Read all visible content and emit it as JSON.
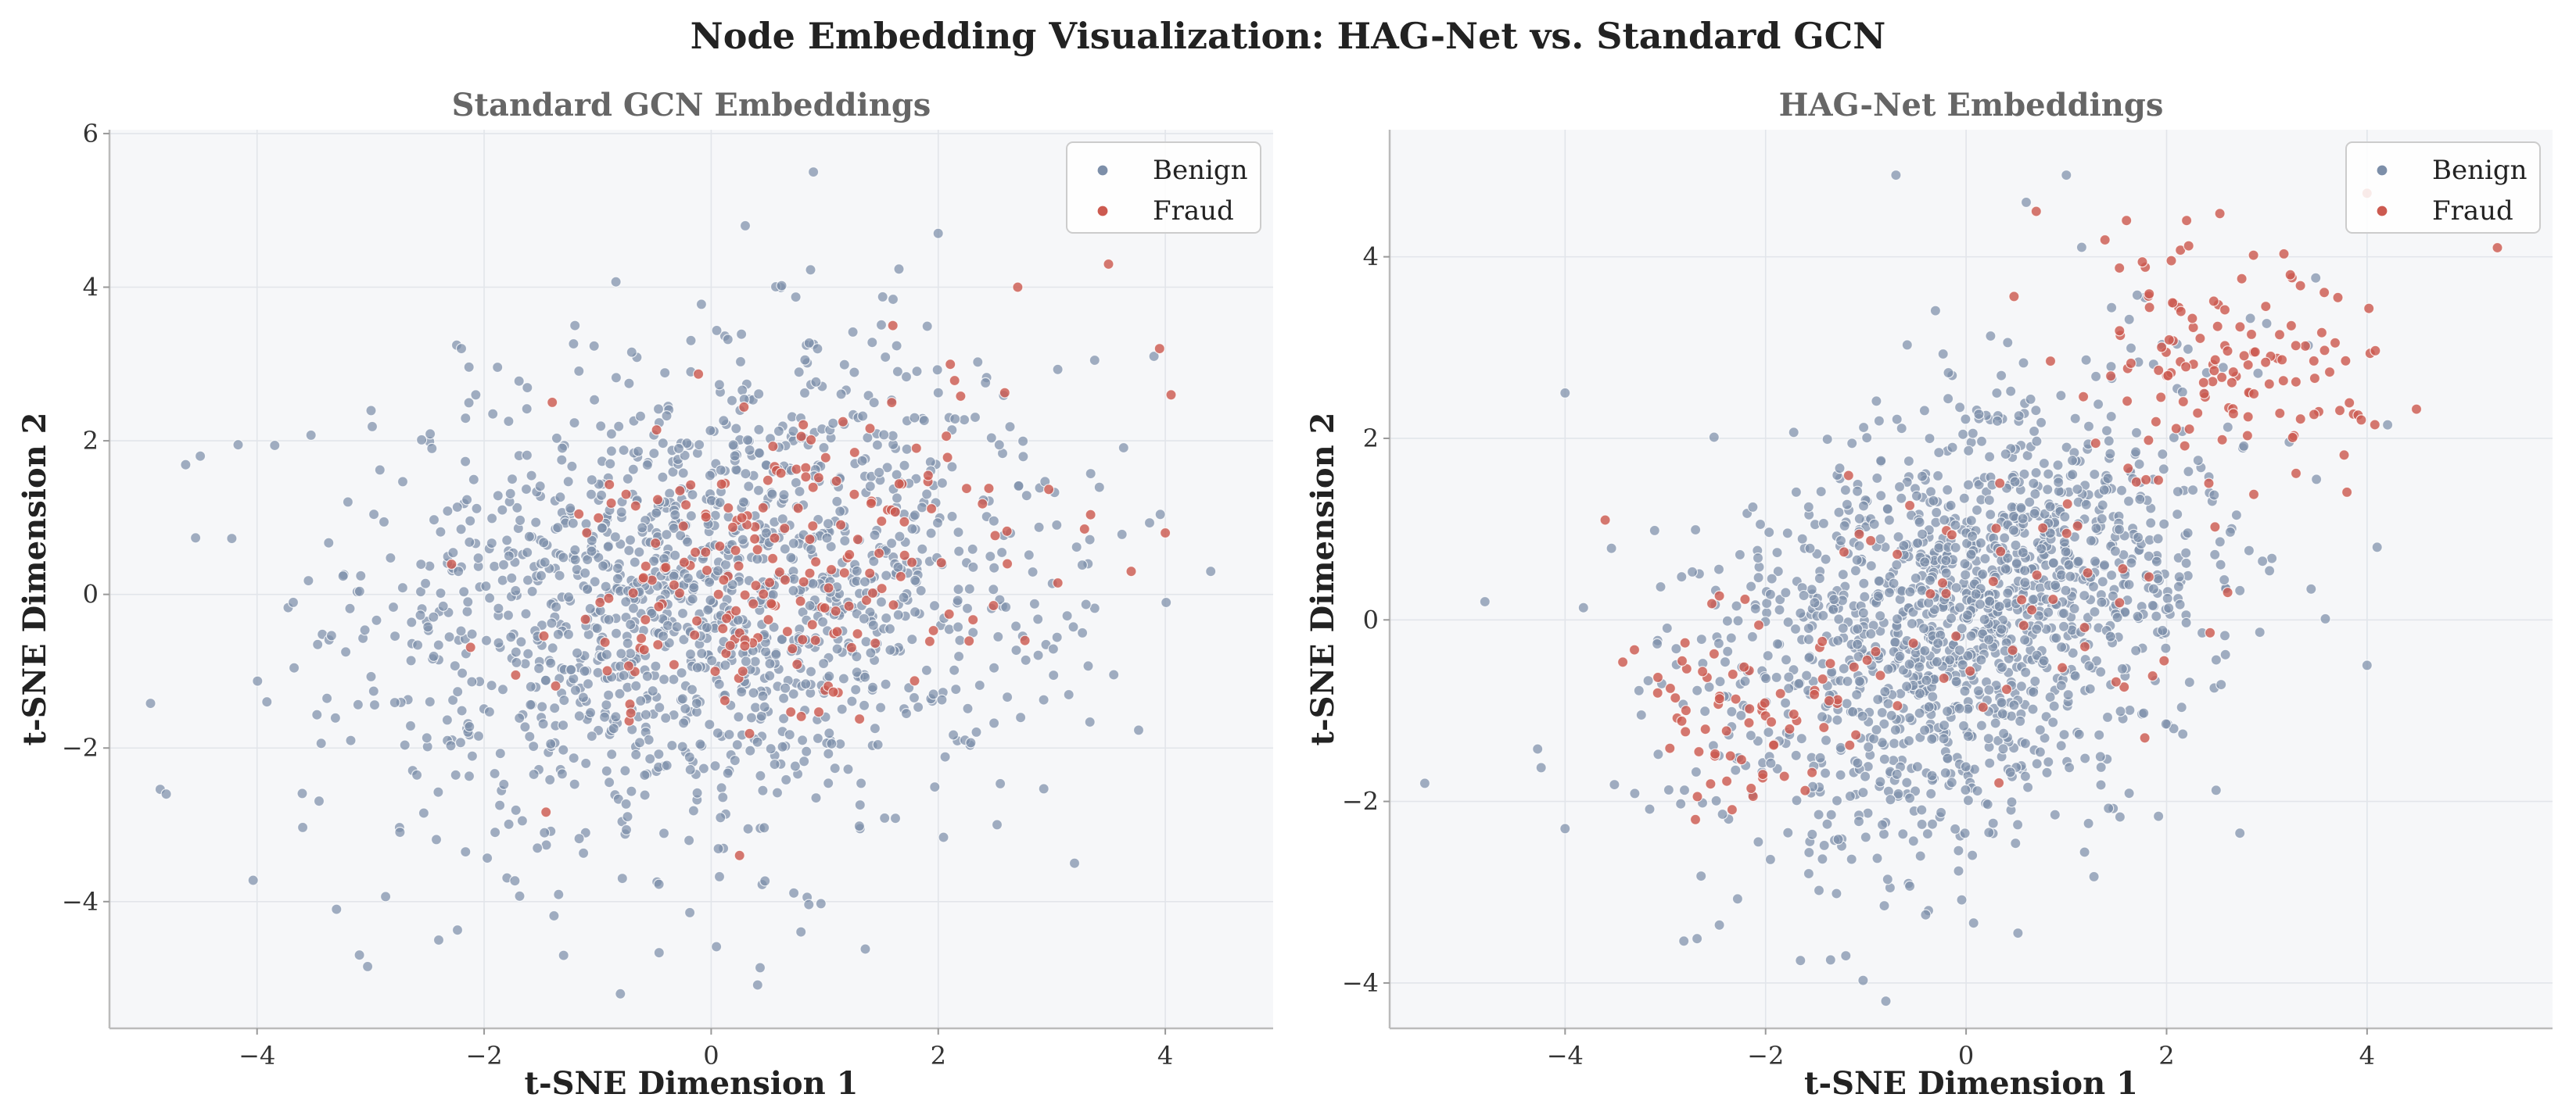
{
  "figure_title": "Node Embedding Visualization: HAG-Net vs. Standard GCN",
  "colors": {
    "benign": "#7D8FA9",
    "fraud": "#CC5A50",
    "plot_bg": "#F6F7F9",
    "grid": "#E2E5EA",
    "spine": "#BBBBBB"
  },
  "chart_data": [
    {
      "type": "scatter",
      "title": "Standard GCN Embeddings",
      "xlabel": "t-SNE Dimension 1",
      "ylabel": "t-SNE Dimension 2",
      "xlim": [
        -5.3,
        4.95
      ],
      "ylim": [
        -5.65,
        6.05
      ],
      "xticks": [
        -4,
        -2,
        0,
        2,
        4
      ],
      "yticks": [
        -4,
        -2,
        0,
        2,
        4,
        6
      ],
      "xtick_labels": [
        "−4",
        "−2",
        "0",
        "2",
        "4"
      ],
      "ytick_labels": [
        "−4",
        "−2",
        "0",
        "2",
        "4",
        "6"
      ],
      "grid": true,
      "legend_position": "top-right",
      "series": [
        {
          "name": "Benign",
          "count": 1500,
          "distribution": {
            "kind": "gaussian",
            "mean": [
              0.0,
              0.0
            ],
            "std": [
              1.55,
              1.55
            ],
            "corr": 0.15
          },
          "points": [
            [
              0.9,
              5.5
            ],
            [
              -1.2,
              3.5
            ],
            [
              2.0,
              4.7
            ],
            [
              -4.5,
              1.8
            ],
            [
              -4.8,
              -2.6
            ],
            [
              -2.4,
              -4.5
            ],
            [
              -0.8,
              -5.2
            ],
            [
              -3.3,
              -4.1
            ],
            [
              4.4,
              0.3
            ],
            [
              3.9,
              3.1
            ],
            [
              -1.3,
              -4.7
            ],
            [
              3.2,
              -3.5
            ],
            [
              0.3,
              4.8
            ],
            [
              -2.2,
              3.2
            ]
          ]
        },
        {
          "name": "Fraud",
          "count": 220,
          "distribution": {
            "kind": "gaussian",
            "mean": [
              0.6,
              0.3
            ],
            "std": [
              1.1,
              1.0
            ],
            "corr": 0.3
          },
          "points": [
            [
              3.95,
              3.2
            ],
            [
              3.5,
              4.3
            ],
            [
              4.0,
              0.8
            ],
            [
              3.7,
              0.3
            ],
            [
              0.25,
              -3.4
            ],
            [
              2.7,
              4.0
            ],
            [
              1.6,
              3.5
            ],
            [
              -1.4,
              2.5
            ]
          ]
        }
      ]
    },
    {
      "type": "scatter",
      "title": "HAG-Net Embeddings",
      "xlabel": "t-SNE Dimension 1",
      "ylabel": "t-SNE Dimension 2",
      "xlim": [
        -5.75,
        5.85
      ],
      "ylim": [
        -4.5,
        5.4
      ],
      "xticks": [
        -4,
        -2,
        0,
        2,
        4
      ],
      "yticks": [
        -4,
        -2,
        0,
        2,
        4
      ],
      "xtick_labels": [
        "−4",
        "−2",
        "0",
        "2",
        "4"
      ],
      "ytick_labels": [
        "−4",
        "−2",
        "0",
        "2",
        "4"
      ],
      "grid": true,
      "legend_position": "top-right",
      "series": [
        {
          "name": "Benign",
          "count": 1500,
          "distribution": {
            "kind": "gaussian",
            "mean": [
              0.0,
              0.0
            ],
            "std": [
              1.25,
              1.25
            ],
            "corr": 0.35
          },
          "points": [
            [
              -5.4,
              -1.8
            ],
            [
              -4.0,
              -2.3
            ],
            [
              -4.0,
              2.5
            ],
            [
              -4.8,
              0.2
            ],
            [
              -0.7,
              4.9
            ],
            [
              1.0,
              4.9
            ],
            [
              4.0,
              -0.5
            ],
            [
              4.1,
              0.8
            ],
            [
              -0.8,
              -4.2
            ],
            [
              -1.2,
              -3.7
            ],
            [
              0.6,
              4.6
            ]
          ]
        },
        {
          "name": "Fraud",
          "count": 260,
          "clusters": [
            {
              "mean": [
                2.6,
                2.8
              ],
              "std": [
                0.75,
                0.65
              ],
              "share": 0.52
            },
            {
              "mean": [
                -2.1,
                -0.9
              ],
              "std": [
                0.7,
                0.55
              ],
              "share": 0.3
            },
            {
              "mean": [
                0.3,
                0.3
              ],
              "std": [
                1.0,
                0.8
              ],
              "share": 0.18
            }
          ],
          "points": [
            [
              5.3,
              4.1
            ],
            [
              4.0,
              4.7
            ],
            [
              0.7,
              4.5
            ],
            [
              -3.6,
              1.1
            ],
            [
              -2.7,
              -2.2
            ],
            [
              1.6,
              4.4
            ],
            [
              2.2,
              4.4
            ]
          ]
        }
      ]
    }
  ]
}
